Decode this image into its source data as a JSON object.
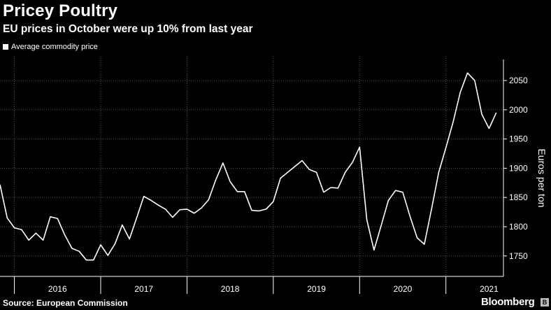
{
  "header": {
    "title": "Pricey Poultry",
    "subtitle": "EU prices in October were up 10% from last year"
  },
  "legend": {
    "label": "Average commodity price"
  },
  "footer": {
    "source": "Source: European Commission",
    "brand": "Bloomberg",
    "badge": "B"
  },
  "colors": {
    "background": "#000000",
    "line": "#ffffff",
    "grid": "#555555"
  },
  "chart_data": {
    "type": "line",
    "title": "Pricey Poultry",
    "subtitle": "EU prices in October were up 10% from last year",
    "xlabel": "",
    "ylabel": "Euros per ton",
    "ylim": [
      1715,
      2080
    ],
    "yticks": [
      1750,
      1800,
      1850,
      1900,
      1950,
      2000,
      2050
    ],
    "y_axis_side": "right",
    "grid": true,
    "legend_placement": "top-left",
    "x_range_months": [
      0,
      70
    ],
    "year_boundaries": [
      2,
      14,
      26,
      38,
      50,
      62
    ],
    "year_labels": [
      {
        "label": "2016",
        "center": 8
      },
      {
        "label": "2017",
        "center": 20
      },
      {
        "label": "2018",
        "center": 32
      },
      {
        "label": "2019",
        "center": 44
      },
      {
        "label": "2020",
        "center": 56
      },
      {
        "label": "2021",
        "center": 68
      }
    ],
    "series": [
      {
        "name": "Average commodity price",
        "values": [
          1872,
          1815,
          1798,
          1795,
          1777,
          1789,
          1777,
          1817,
          1814,
          1786,
          1763,
          1758,
          1743,
          1743,
          1769,
          1751,
          1771,
          1803,
          1779,
          1815,
          1852,
          1845,
          1837,
          1830,
          1816,
          1829,
          1830,
          1823,
          1832,
          1846,
          1880,
          1909,
          1877,
          1860,
          1860,
          1828,
          1827,
          1830,
          1843,
          1883,
          1893,
          1903,
          1913,
          1898,
          1893,
          1859,
          1867,
          1866,
          1893,
          1910,
          1936,
          1812,
          1760,
          1802,
          1845,
          1862,
          1859,
          1818,
          1781,
          1770,
          1830,
          1893,
          1935,
          1979,
          2030,
          2063,
          2050,
          1992,
          1968,
          1995
        ]
      }
    ]
  }
}
